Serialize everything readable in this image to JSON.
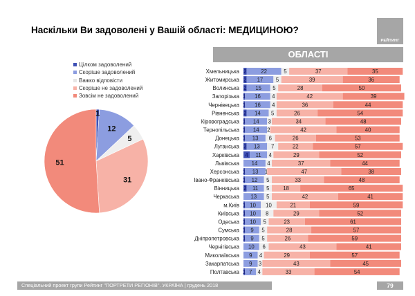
{
  "header": {
    "title": "Наскільки Ви задоволені у Вашій області: МЕДИЦИНОЮ?",
    "logo_text": "РЕЙТИНГ",
    "section_label": "ОБЛАСТІ"
  },
  "footer": {
    "text": "Спеціальний проект групи Рейтинг \"ПОРТРЕТИ РЕГІОНІВ\". УКРАЇНА | грудень 2018",
    "page_number": "79"
  },
  "colors": {
    "fully_satisfied": "#3f51b5",
    "rather_satisfied": "#8c9de0",
    "hard_to_say": "#efefef",
    "rather_not_satisfied": "#f7b2a7",
    "not_satisfied": "#f28a7b"
  },
  "chart_data": [
    {
      "type": "pie",
      "title": "",
      "legend": [
        "Цілком задоволений",
        "Скоріше задоволений",
        "Важко відповісти",
        "Скоріше не задоволений",
        "Зовсім не задоволений"
      ],
      "legend_placement": "top",
      "values": [
        1,
        12,
        5,
        31,
        51
      ]
    },
    {
      "type": "bar",
      "orientation": "horizontal",
      "stacked": true,
      "title": "ОБЛАСТІ",
      "categories": [
        "Хмельницька",
        "Житомирська",
        "Волинська",
        "Запорізька",
        "Чернівецька",
        "Рівненська",
        "Кіровоградська",
        "Тернопільська",
        "Донецька",
        "Луганська",
        "Харківська",
        "Львівська",
        "Херсонська",
        "Івано-Франківська",
        "Вінницька",
        "Черкаська",
        "м.Київ",
        "Київська",
        "Одеська",
        "Сумська",
        "Дніпропетровська",
        "Чернігівська",
        "Миколаївська",
        "Закарпатська",
        "Полтавська"
      ],
      "series": [
        {
          "name": "Цілком задоволений",
          "values": [
            2,
            2,
            2,
            1,
            1,
            2,
            1,
            1,
            1,
            2,
            4,
            0,
            1,
            1,
            2,
            0,
            1,
            1,
            1,
            1,
            1,
            0,
            0,
            0,
            1
          ]
        },
        {
          "name": "Скоріше задоволений",
          "values": [
            22,
            17,
            15,
            16,
            16,
            14,
            14,
            14,
            13,
            13,
            11,
            14,
            13,
            12,
            11,
            13,
            10,
            10,
            10,
            9,
            9,
            10,
            9,
            9,
            7
          ]
        },
        {
          "name": "Важко відповісти",
          "values": [
            5,
            5,
            5,
            4,
            4,
            5,
            3,
            2,
            6,
            7,
            4,
            4,
            1,
            5,
            5,
            5,
            10,
            8,
            5,
            5,
            5,
            6,
            4,
            3,
            4
          ]
        },
        {
          "name": "Скоріше не задоволений",
          "values": [
            37,
            39,
            28,
            42,
            36,
            26,
            34,
            42,
            26,
            22,
            29,
            37,
            47,
            33,
            18,
            42,
            21,
            29,
            23,
            28,
            26,
            43,
            29,
            43,
            33
          ]
        },
        {
          "name": "Зовсім не задоволений",
          "values": [
            35,
            36,
            50,
            39,
            44,
            54,
            48,
            40,
            53,
            57,
            52,
            44,
            38,
            48,
            65,
            41,
            59,
            52,
            61,
            57,
            59,
            41,
            57,
            45,
            54
          ]
        }
      ]
    }
  ]
}
